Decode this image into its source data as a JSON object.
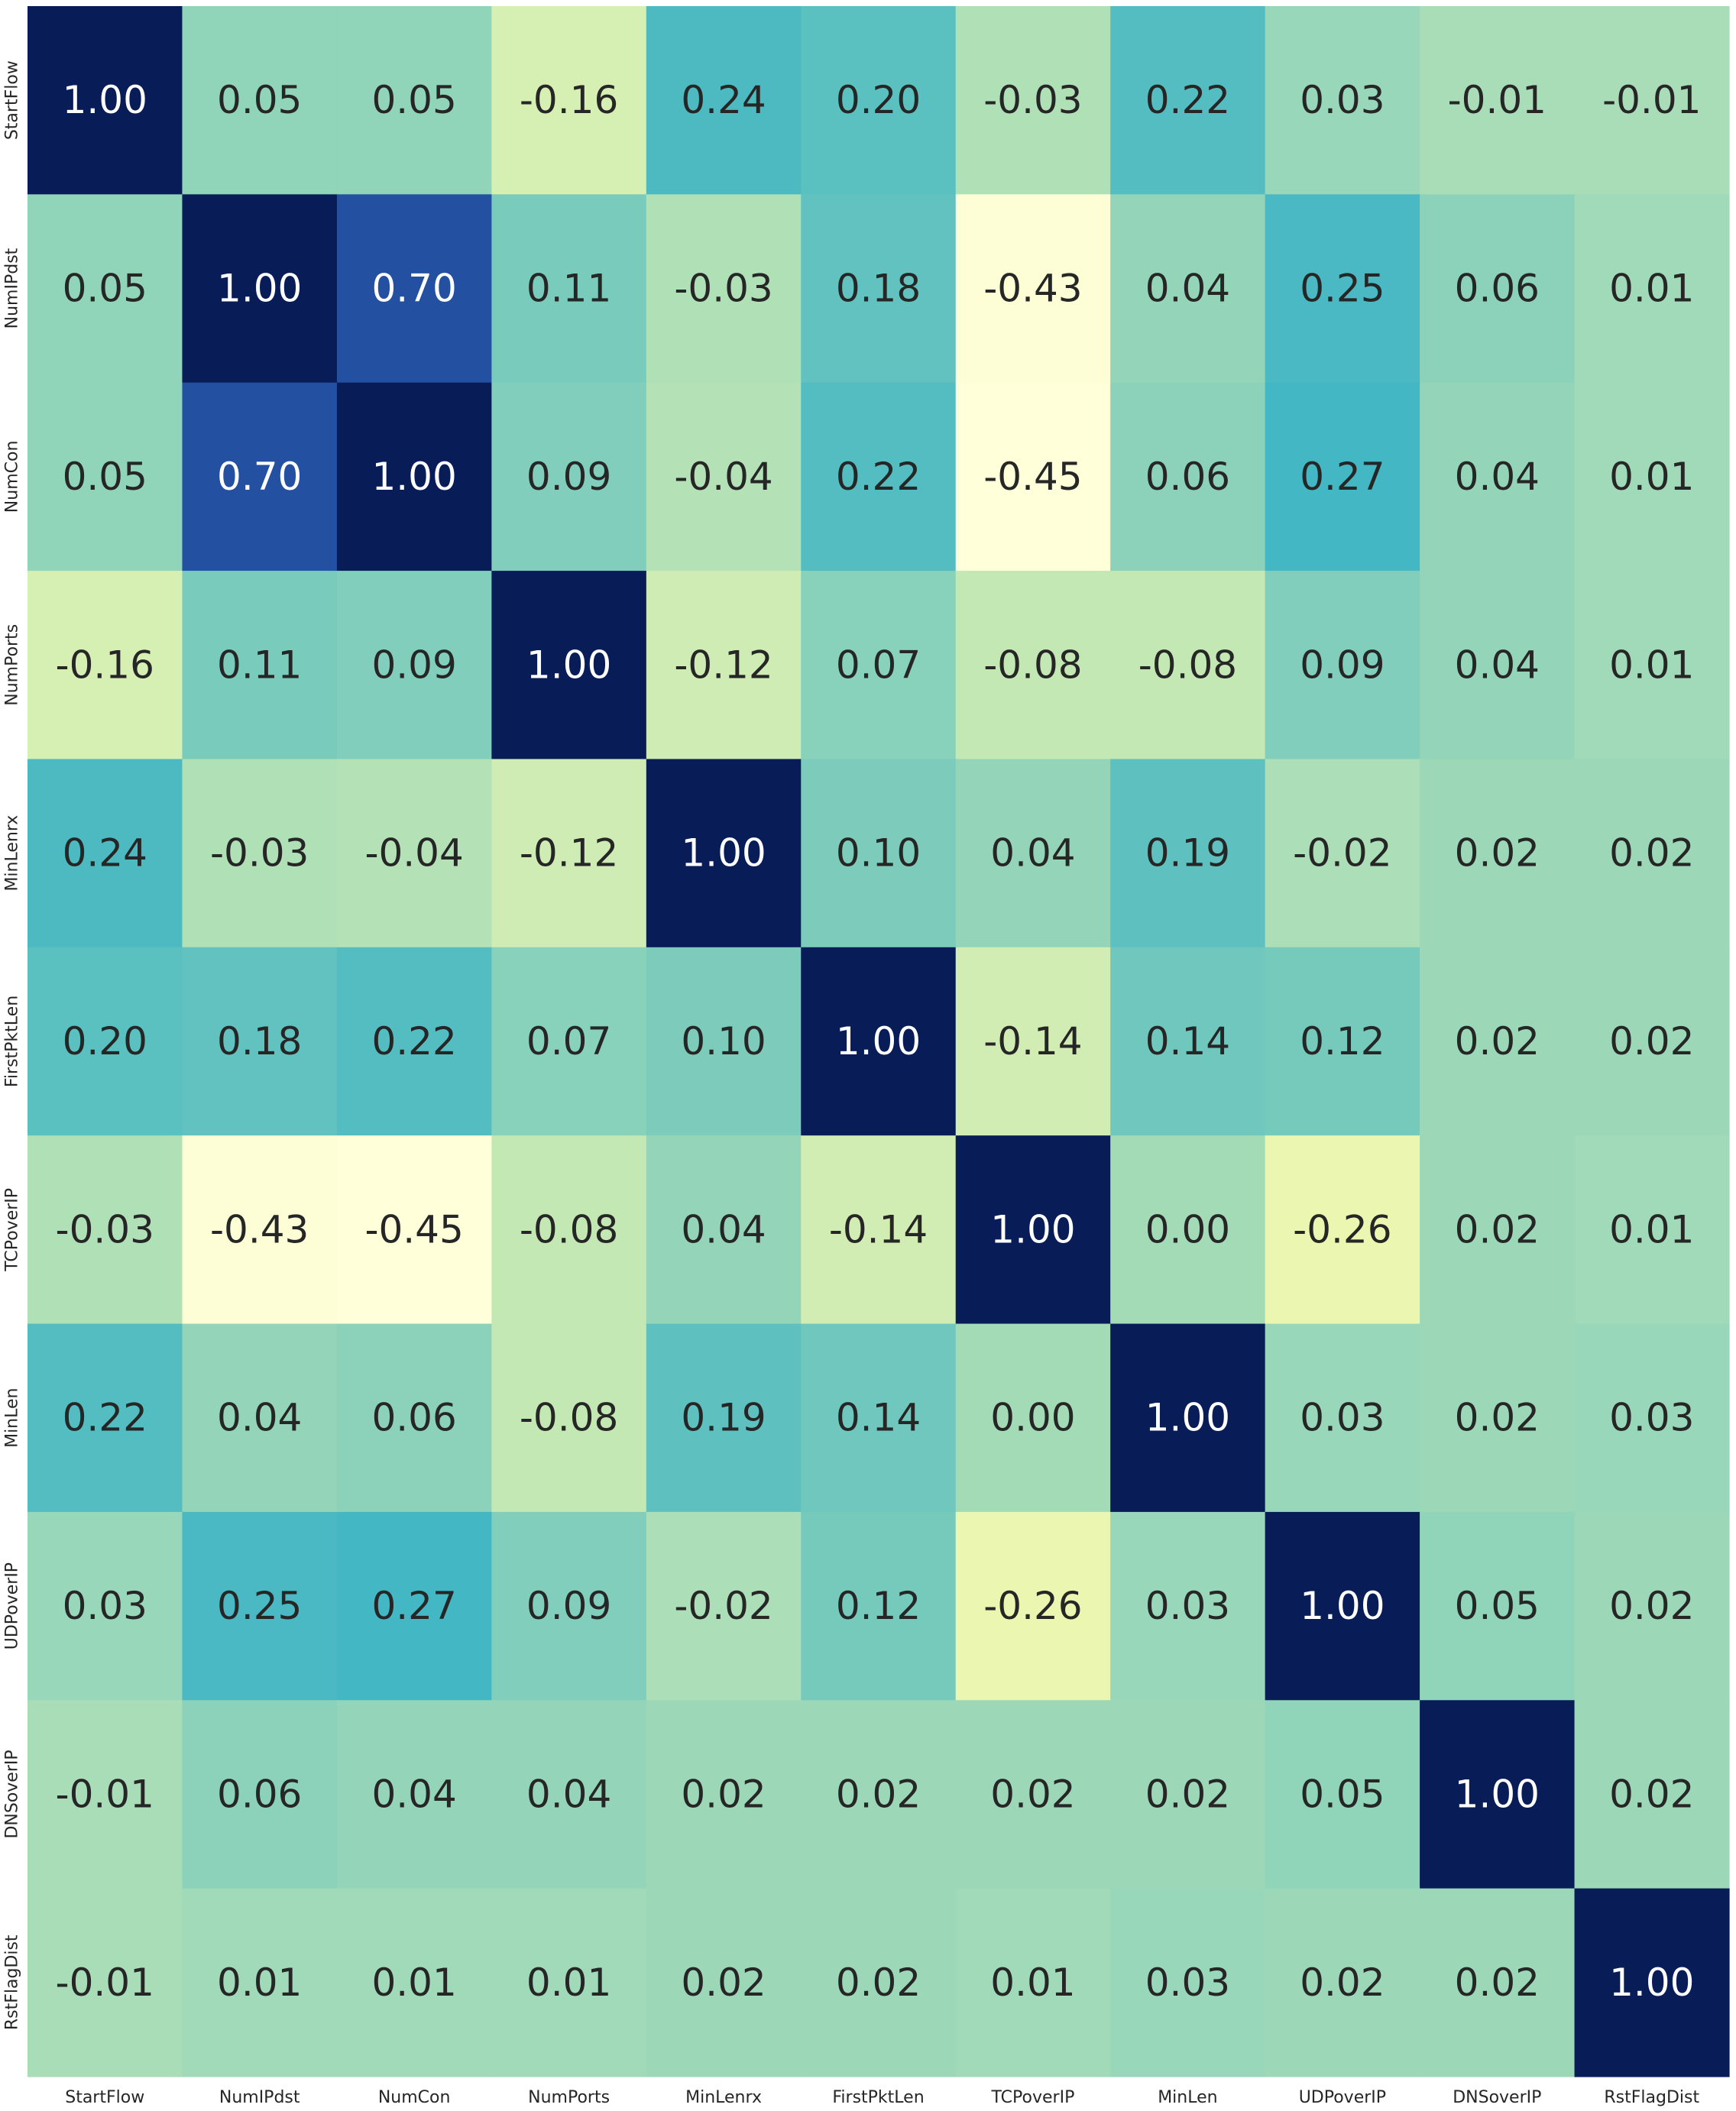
{
  "chart_data": {
    "type": "heatmap",
    "title": "",
    "xlabel": "",
    "ylabel": "",
    "colormap": "YlGnBu",
    "colorbar": false,
    "value_format": "0.00",
    "x_labels": [
      "StartFlow",
      "NumIPdst",
      "NumCon",
      "NumPorts",
      "MinLenrx",
      "FirstPktLen",
      "TCPoverIP",
      "MinLen",
      "UDPoverIP",
      "DNSoverIP",
      "RstFlagDist"
    ],
    "y_labels": [
      "StartFlow",
      "NumIPdst",
      "NumCon",
      "NumPorts",
      "MinLenrx",
      "FirstPktLen",
      "TCPoverIP",
      "MinLen",
      "UDPoverIP",
      "DNSoverIP",
      "RstFlagDist"
    ],
    "values": [
      [
        1.0,
        0.05,
        0.05,
        -0.16,
        0.24,
        0.2,
        -0.03,
        0.22,
        0.03,
        -0.01,
        -0.01
      ],
      [
        0.05,
        1.0,
        0.7,
        0.11,
        -0.03,
        0.18,
        -0.43,
        0.04,
        0.25,
        0.06,
        0.01
      ],
      [
        0.05,
        0.7,
        1.0,
        0.09,
        -0.04,
        0.22,
        -0.45,
        0.06,
        0.27,
        0.04,
        0.01
      ],
      [
        -0.16,
        0.11,
        0.09,
        1.0,
        -0.12,
        0.07,
        -0.08,
        -0.08,
        0.09,
        0.04,
        0.01
      ],
      [
        0.24,
        -0.03,
        -0.04,
        -0.12,
        1.0,
        0.1,
        0.04,
        0.19,
        -0.02,
        0.02,
        0.02
      ],
      [
        0.2,
        0.18,
        0.22,
        0.07,
        0.1,
        1.0,
        -0.14,
        0.14,
        0.12,
        0.02,
        0.02
      ],
      [
        -0.03,
        -0.43,
        -0.45,
        -0.08,
        0.04,
        -0.14,
        1.0,
        0.0,
        -0.26,
        0.02,
        0.01
      ],
      [
        0.22,
        0.04,
        0.06,
        -0.08,
        0.19,
        0.14,
        0.0,
        1.0,
        0.03,
        0.02,
        0.03
      ],
      [
        0.03,
        0.25,
        0.27,
        0.09,
        -0.02,
        0.12,
        -0.26,
        0.03,
        1.0,
        0.05,
        0.02
      ],
      [
        -0.01,
        0.06,
        0.04,
        0.04,
        0.02,
        0.02,
        0.02,
        0.02,
        0.05,
        1.0,
        0.02
      ],
      [
        -0.01,
        0.01,
        0.01,
        0.01,
        0.02,
        0.02,
        0.01,
        0.03,
        0.02,
        0.02,
        1.0
      ]
    ]
  }
}
